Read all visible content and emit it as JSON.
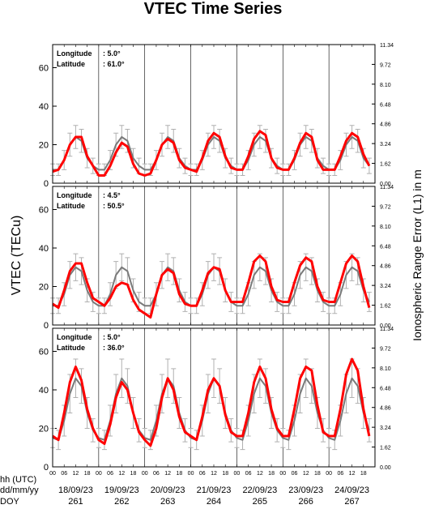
{
  "figure": {
    "title": "VTEC Time Series",
    "ylabel": "VTEC (TECu)",
    "y2label": "Ionospheric Range Error (L1) in m",
    "row_labels": [
      "hh (UTC)",
      "dd/mm/yy",
      "DOY"
    ],
    "xlim": [
      0,
      168
    ],
    "xticks": [
      {
        "value": 0,
        "label": "00"
      },
      {
        "value": 6,
        "label": "06"
      },
      {
        "value": 12,
        "label": "12"
      },
      {
        "value": 18,
        "label": "18"
      },
      {
        "value": 24,
        "label": "00"
      },
      {
        "value": 30,
        "label": "06"
      },
      {
        "value": 36,
        "label": "12"
      },
      {
        "value": 42,
        "label": "18"
      },
      {
        "value": 48,
        "label": "00"
      },
      {
        "value": 54,
        "label": "06"
      },
      {
        "value": 60,
        "label": "12"
      },
      {
        "value": 66,
        "label": "18"
      },
      {
        "value": 72,
        "label": "00"
      },
      {
        "value": 78,
        "label": "06"
      },
      {
        "value": 84,
        "label": "12"
      },
      {
        "value": 90,
        "label": "18"
      },
      {
        "value": 96,
        "label": "00"
      },
      {
        "value": 102,
        "label": "06"
      },
      {
        "value": 108,
        "label": "12"
      },
      {
        "value": 114,
        "label": "18"
      },
      {
        "value": 120,
        "label": "00"
      },
      {
        "value": 126,
        "label": "06"
      },
      {
        "value": 132,
        "label": "12"
      },
      {
        "value": 138,
        "label": "18"
      },
      {
        "value": 144,
        "label": "00"
      },
      {
        "value": 150,
        "label": "06"
      },
      {
        "value": 156,
        "label": "12"
      },
      {
        "value": 162,
        "label": "18"
      }
    ],
    "ylim": [
      0,
      72
    ],
    "yticks": [
      0,
      20,
      40,
      60
    ],
    "y2lim": [
      0,
      11.34
    ],
    "y2ticks": [
      {
        "value": 0,
        "label": "0.00"
      },
      {
        "value": 1.62,
        "label": "1.62"
      },
      {
        "value": 3.24,
        "label": "3.24"
      },
      {
        "value": 4.86,
        "label": "4.86"
      },
      {
        "value": 6.48,
        "label": "6.48"
      },
      {
        "value": 8.1,
        "label": "8.10"
      },
      {
        "value": 9.72,
        "label": "9.72"
      },
      {
        "value": 11.34,
        "label": "11.34"
      }
    ],
    "dates": [
      "18/09/23",
      "19/09/23",
      "20/09/23",
      "21/09/23",
      "22/09/23",
      "23/09/23",
      "24/09/23"
    ],
    "doy": [
      "261",
      "262",
      "263",
      "264",
      "265",
      "266",
      "267"
    ]
  },
  "chart_data": [
    {
      "type": "line",
      "longitude_label": "Longitude",
      "longitude": ":   5.0°",
      "latitude_label": "Latitude",
      "latitude": ": 61.0°",
      "x": [
        0,
        3,
        6,
        9,
        12,
        15,
        18,
        21,
        24,
        27,
        30,
        33,
        36,
        39,
        42,
        45,
        48,
        51,
        54,
        57,
        60,
        63,
        66,
        69,
        72,
        75,
        78,
        81,
        84,
        87,
        90,
        93,
        96,
        99,
        102,
        105,
        108,
        111,
        114,
        117,
        120,
        123,
        126,
        129,
        132,
        135,
        138,
        141,
        144,
        147,
        150,
        153,
        156,
        159,
        162,
        165
      ],
      "series": [
        {
          "color": "#7a7a7a",
          "error_color": "#b0b0b0",
          "values": [
            7,
            7,
            12,
            20,
            24,
            22,
            13,
            9,
            7,
            7,
            12,
            20,
            24,
            22,
            13,
            9,
            7,
            7,
            12,
            20,
            24,
            22,
            13,
            9,
            7,
            7,
            12,
            20,
            24,
            22,
            13,
            9,
            7,
            7,
            12,
            20,
            24,
            22,
            13,
            9,
            7,
            7,
            12,
            20,
            24,
            22,
            13,
            9,
            7,
            7,
            12,
            20,
            24,
            22,
            13,
            9
          ],
          "errors": [
            3,
            3,
            5,
            6,
            6,
            6,
            5,
            4,
            3,
            3,
            5,
            6,
            6,
            6,
            5,
            4,
            3,
            3,
            5,
            6,
            6,
            6,
            5,
            4,
            3,
            3,
            5,
            6,
            6,
            6,
            5,
            4,
            3,
            3,
            5,
            6,
            6,
            6,
            5,
            4,
            3,
            3,
            5,
            6,
            6,
            6,
            5,
            4,
            3,
            3,
            5,
            6,
            6,
            6,
            5,
            4
          ]
        },
        {
          "color": "#ff0000",
          "values": [
            6,
            7,
            12,
            20,
            24,
            24,
            14,
            9,
            4,
            4,
            9,
            16,
            21,
            19,
            10,
            5,
            4,
            5,
            12,
            20,
            23,
            21,
            12,
            8,
            7,
            6,
            13,
            22,
            26,
            24,
            14,
            8,
            7,
            7,
            14,
            23,
            27,
            25,
            13,
            8,
            7,
            7,
            13,
            21,
            26,
            24,
            12,
            7,
            7,
            7,
            14,
            22,
            26,
            24,
            15,
            9
          ]
        }
      ]
    },
    {
      "type": "line",
      "longitude_label": "Longitude",
      "longitude": ":   4.5°",
      "latitude_label": "Latitude",
      "latitude": ": 50.5°",
      "x": [
        0,
        3,
        6,
        9,
        12,
        15,
        18,
        21,
        24,
        27,
        30,
        33,
        36,
        39,
        42,
        45,
        48,
        51,
        54,
        57,
        60,
        63,
        66,
        69,
        72,
        75,
        78,
        81,
        84,
        87,
        90,
        93,
        96,
        99,
        102,
        105,
        108,
        111,
        114,
        117,
        120,
        123,
        126,
        129,
        132,
        135,
        138,
        141,
        144,
        147,
        150,
        153,
        156,
        159,
        162,
        165
      ],
      "series": [
        {
          "color": "#7a7a7a",
          "error_color": "#b0b0b0",
          "values": [
            10,
            10,
            16,
            26,
            30,
            28,
            18,
            12,
            10,
            10,
            16,
            26,
            30,
            28,
            18,
            12,
            10,
            10,
            16,
            26,
            30,
            28,
            18,
            12,
            10,
            10,
            16,
            26,
            30,
            28,
            18,
            12,
            10,
            10,
            16,
            26,
            30,
            28,
            18,
            12,
            10,
            10,
            16,
            26,
            30,
            28,
            18,
            12,
            10,
            10,
            16,
            26,
            30,
            28,
            18,
            12
          ],
          "errors": [
            4,
            4,
            6,
            7,
            7,
            7,
            6,
            5,
            4,
            4,
            6,
            7,
            7,
            7,
            6,
            5,
            4,
            4,
            6,
            7,
            7,
            7,
            6,
            5,
            4,
            4,
            6,
            7,
            7,
            7,
            6,
            5,
            4,
            4,
            6,
            7,
            7,
            7,
            6,
            5,
            4,
            4,
            6,
            7,
            7,
            7,
            6,
            5,
            4,
            4,
            6,
            7,
            7,
            7,
            6,
            5
          ]
        },
        {
          "color": "#ff0000",
          "values": [
            11,
            9,
            18,
            28,
            32,
            32,
            22,
            14,
            12,
            10,
            14,
            20,
            22,
            21,
            13,
            8,
            6,
            4,
            16,
            26,
            29,
            27,
            16,
            11,
            10,
            10,
            18,
            27,
            30,
            29,
            18,
            12,
            12,
            12,
            22,
            33,
            36,
            33,
            20,
            13,
            12,
            12,
            22,
            31,
            35,
            33,
            20,
            13,
            12,
            12,
            22,
            32,
            36,
            33,
            20,
            9
          ]
        }
      ]
    },
    {
      "type": "line",
      "longitude_label": "Longitude",
      "longitude": ":   5.0°",
      "latitude_label": "Latitude",
      "latitude": ": 36.0°",
      "x": [
        0,
        3,
        6,
        9,
        12,
        15,
        18,
        21,
        24,
        27,
        30,
        33,
        36,
        39,
        42,
        45,
        48,
        51,
        54,
        57,
        60,
        63,
        66,
        69,
        72,
        75,
        78,
        81,
        84,
        87,
        90,
        93,
        96,
        99,
        102,
        105,
        108,
        111,
        114,
        117,
        120,
        123,
        126,
        129,
        132,
        135,
        138,
        141,
        144,
        147,
        150,
        153,
        156,
        159,
        162,
        165
      ],
      "series": [
        {
          "color": "#7a7a7a",
          "error_color": "#b0b0b0",
          "values": [
            15,
            14,
            24,
            38,
            46,
            42,
            28,
            19,
            15,
            14,
            24,
            38,
            46,
            42,
            28,
            19,
            15,
            14,
            24,
            38,
            46,
            42,
            28,
            19,
            15,
            14,
            24,
            38,
            46,
            42,
            28,
            19,
            15,
            14,
            24,
            38,
            46,
            42,
            28,
            19,
            15,
            14,
            24,
            38,
            46,
            42,
            28,
            19,
            15,
            14,
            24,
            38,
            46,
            42,
            28,
            19
          ],
          "errors": [
            5,
            5,
            8,
            10,
            10,
            9,
            8,
            6,
            5,
            5,
            8,
            10,
            10,
            9,
            8,
            6,
            5,
            5,
            8,
            10,
            10,
            9,
            8,
            6,
            5,
            5,
            8,
            10,
            10,
            9,
            8,
            6,
            5,
            5,
            8,
            10,
            10,
            9,
            8,
            6,
            5,
            5,
            8,
            10,
            10,
            9,
            8,
            6,
            5,
            5,
            8,
            10,
            10,
            9,
            8,
            6
          ]
        },
        {
          "color": "#ff0000",
          "values": [
            16,
            14,
            28,
            44,
            52,
            45,
            30,
            20,
            14,
            12,
            22,
            36,
            44,
            40,
            28,
            18,
            14,
            11,
            20,
            36,
            46,
            40,
            26,
            18,
            16,
            14,
            26,
            40,
            46,
            42,
            27,
            18,
            16,
            16,
            28,
            44,
            52,
            46,
            30,
            20,
            16,
            16,
            30,
            46,
            52,
            50,
            32,
            18,
            16,
            16,
            30,
            48,
            56,
            50,
            30,
            16
          ]
        }
      ]
    }
  ]
}
